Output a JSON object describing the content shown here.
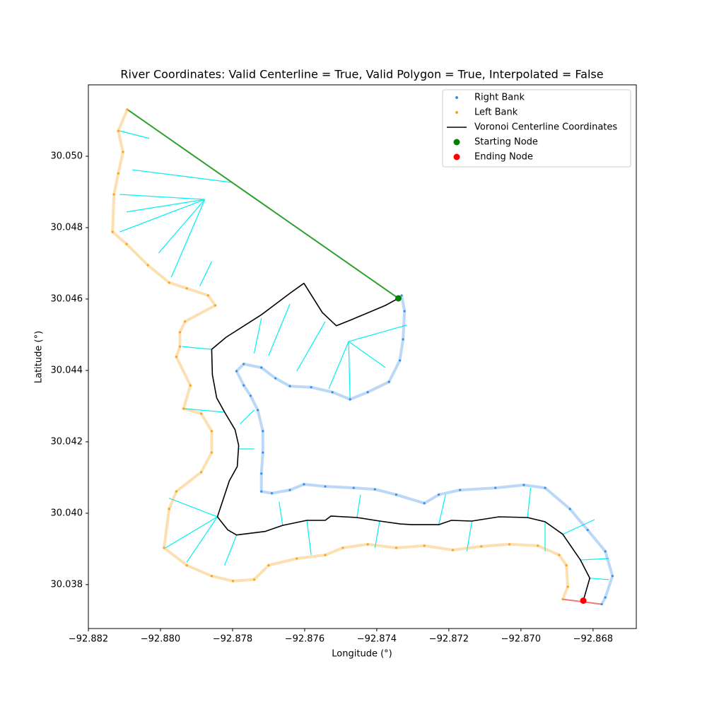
{
  "chart_data": {
    "type": "scatter",
    "title": "River Coordinates: Valid Centerline = True, Valid Polygon = True, Interpolated = False",
    "x_label": "Longitude (°)",
    "y_label": "Latitude (°)",
    "xlim": [
      -92.882,
      -92.8668
    ],
    "ylim": [
      30.03677,
      30.052
    ],
    "xticks": [
      {
        "value": -92.882,
        "label": "−92.882"
      },
      {
        "value": -92.88,
        "label": "−92.880"
      },
      {
        "value": -92.878,
        "label": "−92.878"
      },
      {
        "value": -92.876,
        "label": "−92.876"
      },
      {
        "value": -92.874,
        "label": "−92.874"
      },
      {
        "value": -92.872,
        "label": "−92.872"
      },
      {
        "value": -92.87,
        "label": "−92.870"
      },
      {
        "value": -92.868,
        "label": "−92.868"
      }
    ],
    "yticks": [
      30.038,
      {
        "value": 30.04,
        "label": "30.040"
      },
      30.042,
      30.044,
      30.046,
      30.048,
      {
        "value": 30.05,
        "label": "30.050"
      }
    ],
    "legend": "upper right",
    "top_edge_color": "#2ca02c",
    "bottom_edge_color": "#f07878",
    "voronoi_edges": {
      "color": "#00f0f0",
      "x": [
        [
          -92.87805,
          -92.88078
        ],
        [
          -92.87877,
          -92.88113
        ],
        [
          -92.87877,
          -92.88094
        ],
        [
          -92.87877,
          -92.88005
        ],
        [
          -92.87877,
          -92.8797
        ],
        [
          -92.87877,
          -92.88113
        ],
        [
          -92.88113,
          -92.88031
        ],
        [
          -92.87858,
          -92.87891
        ],
        [
          -92.87478,
          -92.87317
        ],
        [
          -92.87478,
          -92.87376
        ],
        [
          -92.87478,
          -92.87474
        ],
        [
          -92.87478,
          -92.87533
        ],
        [
          -92.87543,
          -92.87622
        ],
        [
          -92.87641,
          -92.877
        ],
        [
          -92.8772,
          -92.8774
        ],
        [
          -92.87858,
          -92.8794
        ],
        [
          -92.87822,
          -92.87936
        ],
        [
          -92.87779,
          -92.8774
        ],
        [
          -92.87783,
          -92.8774
        ],
        [
          -92.87842,
          -92.87976
        ],
        [
          -92.87842,
          -92.87986
        ],
        [
          -92.87842,
          -92.87927
        ],
        [
          -92.87789,
          -92.87822
        ],
        [
          -92.87661,
          -92.87671
        ],
        [
          -92.87594,
          -92.87582
        ],
        [
          -92.87455,
          -92.87445
        ],
        [
          -92.87392,
          -92.87405
        ],
        [
          -92.87228,
          -92.87209
        ],
        [
          -92.87136,
          -92.8715
        ],
        [
          -92.86982,
          -92.86973
        ],
        [
          -92.86933,
          -92.86933
        ],
        [
          -92.86884,
          -92.86796
        ],
        [
          -92.86835,
          -92.86756
        ],
        [
          -92.86809,
          -92.86756
        ]
      ],
      "y": [
        [
          30.04927,
          30.04962
        ],
        [
          30.04879,
          30.04893
        ],
        [
          30.04879,
          30.04844
        ],
        [
          30.04879,
          30.04729
        ],
        [
          30.04879,
          30.04661
        ],
        [
          30.04879,
          30.04788
        ],
        [
          30.05071,
          30.0505
        ],
        [
          30.04705,
          30.04636
        ],
        [
          30.04481,
          30.04527
        ],
        [
          30.04481,
          30.04408
        ],
        [
          30.04481,
          30.04319
        ],
        [
          30.04481,
          30.04349
        ],
        [
          30.04537,
          30.04398
        ],
        [
          30.04586,
          30.04442
        ],
        [
          30.04547,
          30.04448
        ],
        [
          30.04459,
          30.04467
        ],
        [
          30.04283,
          30.04293
        ],
        [
          30.0425,
          30.04289
        ],
        [
          30.0418,
          30.0418
        ],
        [
          30.0399,
          30.04042
        ],
        [
          30.0399,
          30.03903
        ],
        [
          30.0399,
          30.03863
        ],
        [
          30.03939,
          30.03854
        ],
        [
          30.03966,
          30.04032
        ],
        [
          30.0398,
          30.03883
        ],
        [
          30.03988,
          30.04052
        ],
        [
          30.03978,
          30.03903
        ],
        [
          30.03968,
          30.04052
        ],
        [
          30.03978,
          30.03893
        ],
        [
          30.03988,
          30.04071
        ],
        [
          30.03976,
          30.03893
        ],
        [
          30.03941,
          30.03982
        ],
        [
          30.03869,
          30.03873
        ],
        [
          30.03818,
          30.03814
        ]
      ]
    },
    "series": [
      {
        "name": "Right Bank",
        "style": "dots",
        "color": "#3d8fe6",
        "x": [
          -92.87331,
          -92.87323,
          -92.87327,
          -92.87336,
          -92.87366,
          -92.87425,
          -92.87474,
          -92.87523,
          -92.87582,
          -92.87641,
          -92.87681,
          -92.8772,
          -92.87769,
          -92.87789,
          -92.87769,
          -92.8775,
          -92.8773,
          -92.87716,
          -92.87716,
          -92.8772,
          -92.8772,
          -92.87691,
          -92.87641,
          -92.87602,
          -92.87543,
          -92.87464,
          -92.87405,
          -92.87346,
          -92.87268,
          -92.87228,
          -92.87169,
          -92.87071,
          -92.86992,
          -92.86933,
          -92.86864,
          -92.86815,
          -92.86766,
          -92.86746,
          -92.86766,
          -92.86776
        ],
        "values": [
          30.0461,
          30.04566,
          30.04487,
          30.04428,
          30.04368,
          30.04339,
          30.04319,
          30.04339,
          30.04353,
          30.04356,
          30.04378,
          30.04408,
          30.04418,
          30.04398,
          30.04358,
          30.04329,
          30.04289,
          30.0423,
          30.0417,
          30.04111,
          30.04061,
          30.04056,
          30.04065,
          30.04081,
          30.04075,
          30.04071,
          30.04067,
          30.04052,
          30.04028,
          30.04052,
          30.04065,
          30.04071,
          30.04079,
          30.04071,
          30.04012,
          30.03953,
          30.03893,
          30.03824,
          30.03764,
          30.03745
        ]
      },
      {
        "name": "Left Bank",
        "style": "dots",
        "color": "#f5a623",
        "x": [
          -92.88092,
          -92.88117,
          -92.88104,
          -92.88117,
          -92.88129,
          -92.88133,
          -92.88094,
          -92.88035,
          -92.87976,
          -92.87927,
          -92.87868,
          -92.87848,
          -92.87932,
          -92.87946,
          -92.87946,
          -92.87956,
          -92.87917,
          -92.87936,
          -92.87887,
          -92.87858,
          -92.87858,
          -92.87887,
          -92.87956,
          -92.87976,
          -92.8799,
          -92.87927,
          -92.87858,
          -92.87799,
          -92.8774,
          -92.877,
          -92.87622,
          -92.87543,
          -92.87494,
          -92.87425,
          -92.87346,
          -92.87268,
          -92.87189,
          -92.8711,
          -92.87032,
          -92.86953,
          -92.86894,
          -92.86874,
          -92.8687,
          -92.86884
        ],
        "values": [
          30.05131,
          30.05071,
          30.05012,
          30.04952,
          30.04893,
          30.04788,
          30.04754,
          30.04695,
          30.04646,
          30.0463,
          30.0461,
          30.04582,
          30.04537,
          30.04507,
          30.04467,
          30.04438,
          30.04358,
          30.04293,
          30.04279,
          30.0423,
          30.0417,
          30.04115,
          30.04061,
          30.04012,
          30.03903,
          30.03854,
          30.03824,
          30.0381,
          30.03814,
          30.03854,
          30.03873,
          30.03883,
          30.03903,
          30.03913,
          30.03903,
          30.03909,
          30.03897,
          30.03907,
          30.03913,
          30.03909,
          30.03883,
          30.03854,
          30.03794,
          30.03759
        ]
      },
      {
        "name": "Voronoi Centerline Coordinates",
        "style": "line",
        "color": "#000000",
        "x": [
          -92.8734,
          -92.87376,
          -92.87468,
          -92.87512,
          -92.87551,
          -92.87602,
          -92.87641,
          -92.8772,
          -92.87818,
          -92.87858,
          -92.87856,
          -92.87844,
          -92.87822,
          -92.87793,
          -92.87783,
          -92.87787,
          -92.87809,
          -92.87842,
          -92.87813,
          -92.87789,
          -92.8771,
          -92.87661,
          -92.87594,
          -92.87543,
          -92.87527,
          -92.87455,
          -92.87392,
          -92.87335,
          -92.87303,
          -92.87228,
          -92.87193,
          -92.87136,
          -92.87061,
          -92.86982,
          -92.86933,
          -92.86884,
          -92.86835,
          -92.86809,
          -92.86827
        ],
        "values": [
          30.04602,
          30.04582,
          30.04543,
          30.04525,
          30.04562,
          30.04644,
          30.04616,
          30.04556,
          30.04493,
          30.04459,
          30.04388,
          30.04323,
          30.04283,
          30.04234,
          30.0419,
          30.04131,
          30.04091,
          30.0399,
          30.03953,
          30.03939,
          30.03949,
          30.03966,
          30.0398,
          30.0398,
          30.03992,
          30.03988,
          30.03978,
          30.0397,
          30.03968,
          30.03968,
          30.0398,
          30.03978,
          30.0399,
          30.03988,
          30.03976,
          30.03941,
          30.03869,
          30.03818,
          30.03755
        ]
      },
      {
        "name": "Starting Node",
        "style": "node",
        "color": "#008000",
        "x": [
          -92.8734
        ],
        "values": [
          30.04602
        ]
      },
      {
        "name": "Ending Node",
        "style": "node",
        "color": "#ff0000",
        "x": [
          -92.86827
        ],
        "values": [
          30.03755
        ]
      }
    ]
  }
}
